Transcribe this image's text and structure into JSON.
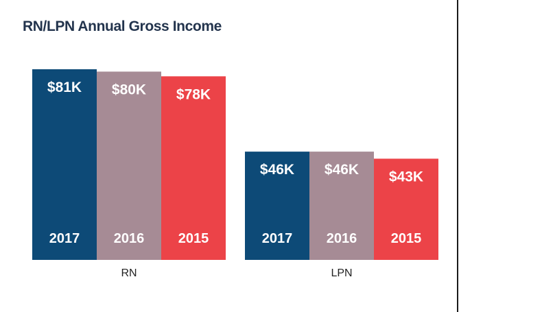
{
  "chart_data": {
    "type": "bar",
    "title": "RN/LPN Annual Gross Income",
    "categories": [
      "RN",
      "LPN"
    ],
    "series": [
      {
        "name": "2017",
        "values": [
          81,
          46
        ],
        "labels": [
          "$81K",
          "$46K"
        ],
        "color": "#0d4a77"
      },
      {
        "name": "2016",
        "values": [
          80,
          46
        ],
        "labels": [
          "$80K",
          "$46K"
        ],
        "color": "#a68b95"
      },
      {
        "name": "2015",
        "values": [
          78,
          43
        ],
        "labels": [
          "$78K",
          "$43K"
        ],
        "color": "#ec4348"
      }
    ],
    "unit": "$K",
    "ylim": [
      0,
      81
    ],
    "grid": false,
    "legend": "none"
  }
}
